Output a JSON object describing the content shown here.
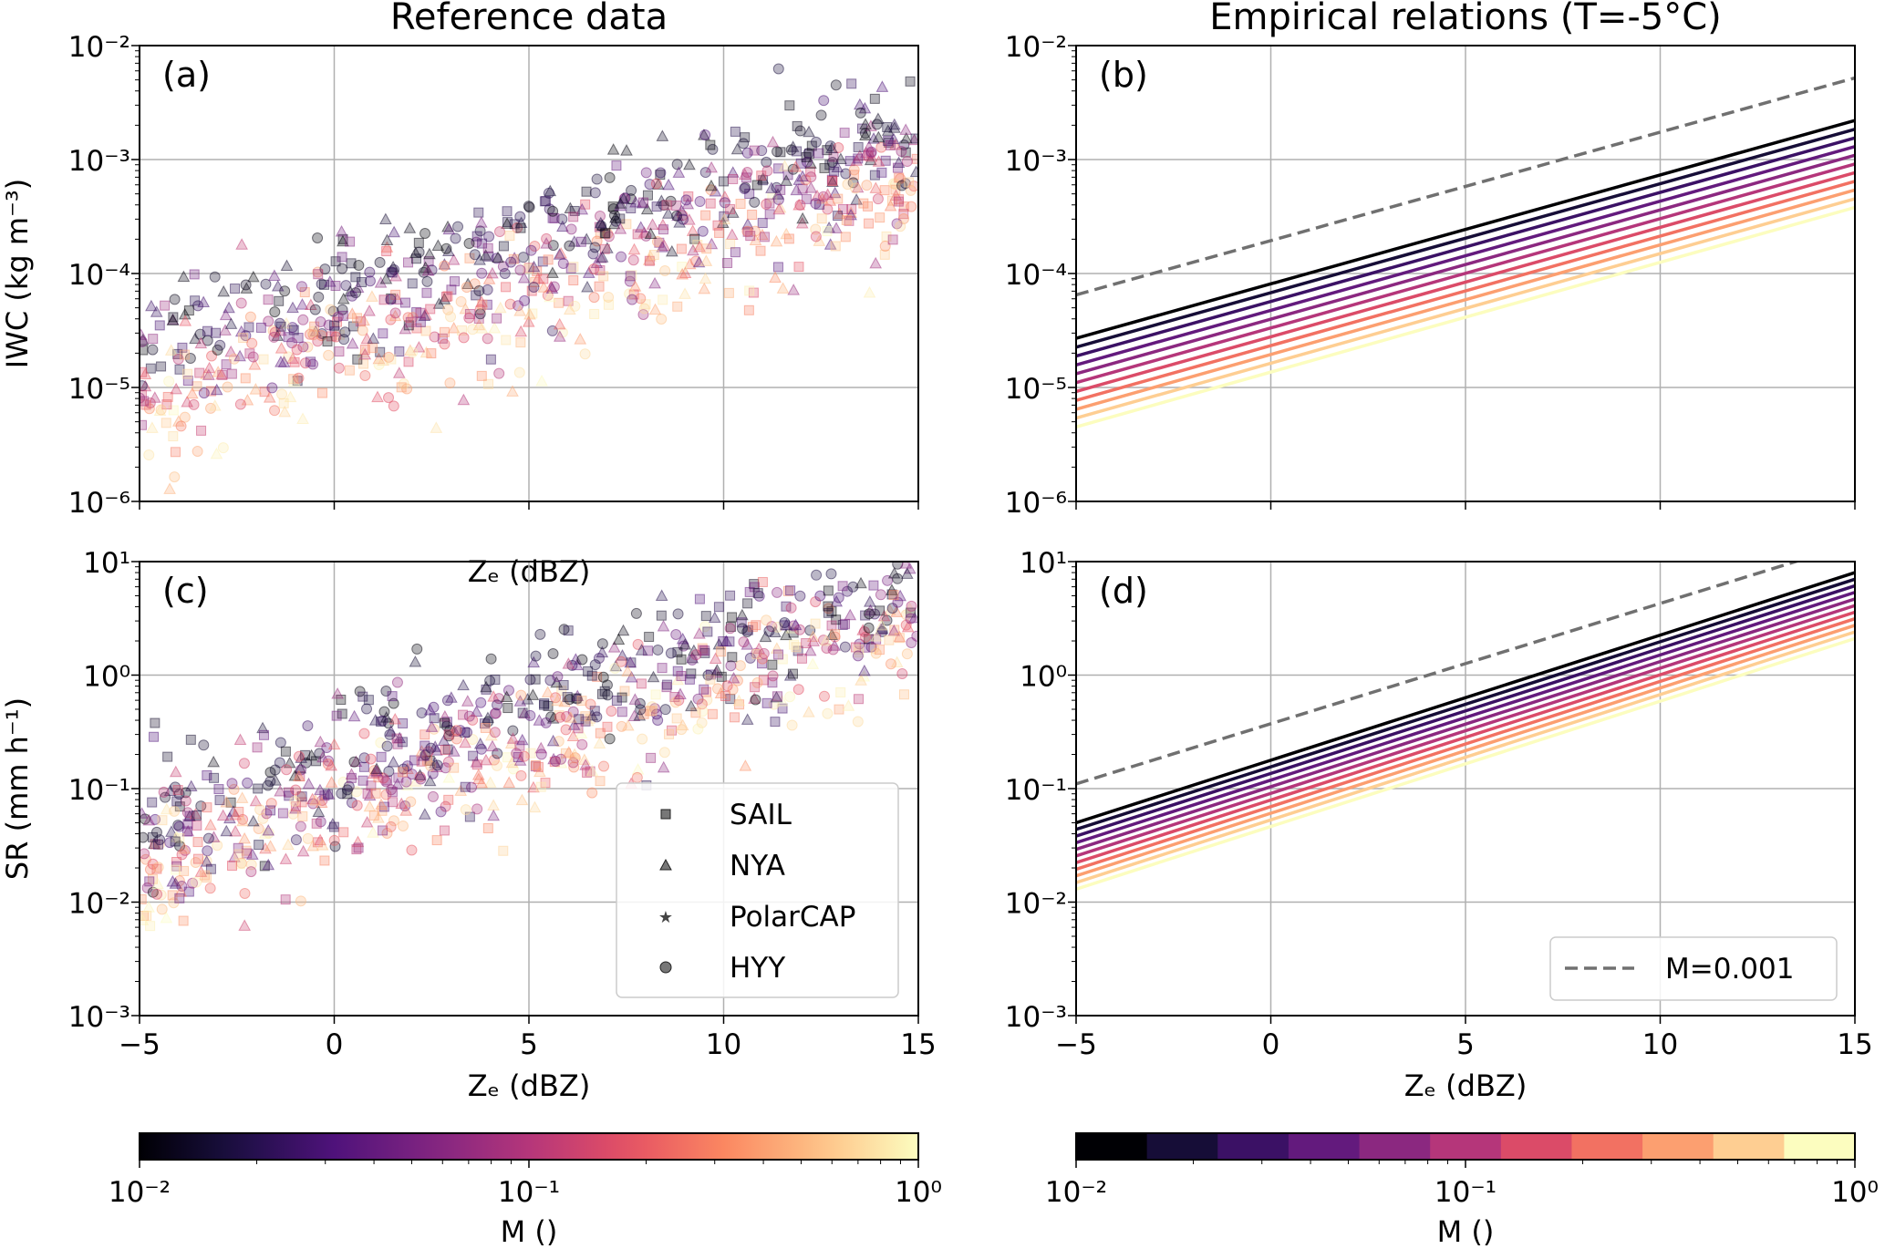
{
  "chart_data": [
    {
      "id": "a",
      "type": "scatter",
      "panel_label": "(a)",
      "title": "Reference data",
      "xlabel": "Zₑ (dBZ)",
      "ylabel": "IWC (kg m⁻³)",
      "xlim": [
        -5,
        15
      ],
      "ylim": [
        1e-06,
        0.01
      ],
      "yscale": "log",
      "grid": true,
      "x_ticks": [
        -5,
        0,
        5,
        10,
        15
      ],
      "y_ticks": [
        {
          "v": 1e-06,
          "label": "10⁻⁶"
        },
        {
          "v": 1e-05,
          "label": "10⁻⁵"
        },
        {
          "v": 0.0001,
          "label": "10⁻⁴"
        },
        {
          "v": 0.001,
          "label": "10⁻³"
        },
        {
          "v": 0.01,
          "label": "10⁻²"
        }
      ],
      "model": {
        "log10_at_xmin_Mmin": -4.57,
        "slope_per_dBZ": 0.0955,
        "M_exponent": -0.39,
        "noise_sd": 0.28
      },
      "color_by": "M"
    },
    {
      "id": "b",
      "type": "line",
      "panel_label": "(b)",
      "title": "Empirical relations (T=-5°C)",
      "xlabel": "",
      "ylabel": "",
      "xlim": [
        -5,
        15
      ],
      "ylim": [
        1e-06,
        0.01
      ],
      "yscale": "log",
      "grid": true,
      "x_ticks": [
        -5,
        0,
        5,
        10,
        15
      ],
      "y_ticks": [
        {
          "v": 1e-06,
          "label": "10⁻⁶"
        },
        {
          "v": 1e-05,
          "label": "10⁻⁵"
        },
        {
          "v": 0.0001,
          "label": "10⁻⁴"
        },
        {
          "v": 0.001,
          "label": "10⁻³"
        },
        {
          "v": 0.01,
          "label": "10⁻²"
        }
      ],
      "series_M": [
        0.01,
        0.0158,
        0.0251,
        0.0398,
        0.0631,
        0.1,
        0.158,
        0.251,
        0.398,
        0.631,
        1.0
      ],
      "series_endpoints": {
        "at_xmin_Mmin": 2.7e-05,
        "at_xmax_Mmin": 0.0022,
        "at_xmin_Mmax": 4.5e-06,
        "at_xmax_Mmax": 0.00038
      },
      "dashed": {
        "label": "M=0.001",
        "at_xmin": 6.5e-05,
        "at_xmax": 0.0052
      }
    },
    {
      "id": "c",
      "type": "scatter",
      "panel_label": "(c)",
      "title": "",
      "xlabel": "Zₑ (dBZ)",
      "ylabel": "SR (mm h⁻¹)",
      "xlim": [
        -5,
        15
      ],
      "ylim": [
        0.001,
        10
      ],
      "yscale": "log",
      "grid": true,
      "x_ticks": [
        -5,
        0,
        5,
        10,
        15
      ],
      "x_tick_labels": [
        "−5",
        "0",
        "5",
        "10",
        "15"
      ],
      "y_ticks": [
        {
          "v": 0.001,
          "label": "10⁻³"
        },
        {
          "v": 0.01,
          "label": "10⁻²"
        },
        {
          "v": 0.1,
          "label": "10⁻¹"
        },
        {
          "v": 1,
          "label": "10⁰"
        },
        {
          "v": 10,
          "label": "10¹"
        }
      ],
      "model": {
        "log10_at_xmin_Mmin": -1.3,
        "slope_per_dBZ": 0.11,
        "M_exponent": -0.29,
        "noise_sd": 0.3
      },
      "legend": {
        "placement": "lower-right",
        "entries": [
          {
            "label": "SAIL",
            "marker": "square"
          },
          {
            "label": "NYA",
            "marker": "triangle"
          },
          {
            "label": "PolarCAP",
            "marker": "star"
          },
          {
            "label": "HYY",
            "marker": "circle"
          }
        ]
      }
    },
    {
      "id": "d",
      "type": "line",
      "panel_label": "(d)",
      "title": "",
      "xlabel": "Zₑ (dBZ)",
      "ylabel": "",
      "xlim": [
        -5,
        15
      ],
      "ylim": [
        0.001,
        10
      ],
      "yscale": "log",
      "grid": true,
      "x_ticks": [
        -5,
        0,
        5,
        10,
        15
      ],
      "x_tick_labels": [
        "−5",
        "0",
        "5",
        "10",
        "15"
      ],
      "y_ticks": [
        {
          "v": 0.001,
          "label": "10⁻³"
        },
        {
          "v": 0.01,
          "label": "10⁻²"
        },
        {
          "v": 0.1,
          "label": "10⁻¹"
        },
        {
          "v": 1,
          "label": "10⁰"
        },
        {
          "v": 10,
          "label": "10¹"
        }
      ],
      "series_M": [
        0.01,
        0.0158,
        0.0251,
        0.0398,
        0.0631,
        0.1,
        0.158,
        0.251,
        0.398,
        0.631,
        1.0
      ],
      "series_endpoints": {
        "at_xmin_Mmin": 0.05,
        "at_xmax_Mmin": 8.0,
        "at_xmin_Mmax": 0.013,
        "at_xmax_Mmax": 2.1
      },
      "dashed": {
        "label": "M=0.001",
        "at_xmin": 0.11,
        "at_xmax": 14.5
      },
      "legend": {
        "placement": "lower-right",
        "entries": [
          {
            "label": "M=0.001",
            "style": "dashed"
          }
        ]
      }
    }
  ],
  "colorbars": [
    {
      "id": "left",
      "type": "continuous",
      "label": "M ()",
      "range": [
        0.01,
        1
      ],
      "ticks": [
        {
          "v": 0.01,
          "label": "10⁻²"
        },
        {
          "v": 0.1,
          "label": "10⁻¹"
        },
        {
          "v": 1,
          "label": "10⁰"
        }
      ]
    },
    {
      "id": "right",
      "type": "discrete",
      "levels": 11,
      "label": "M ()",
      "range": [
        0.01,
        1
      ],
      "ticks": [
        {
          "v": 0.01,
          "label": "10⁻²"
        },
        {
          "v": 0.1,
          "label": "10⁻¹"
        },
        {
          "v": 1,
          "label": "10⁰"
        }
      ]
    }
  ],
  "colors": {
    "grid": "#b0b0b0",
    "dashed": "#707070",
    "magma": [
      "#000004",
      "#1c1044",
      "#4f127b",
      "#812581",
      "#b5367a",
      "#e55064",
      "#fb8761",
      "#fec287",
      "#fcfdbf"
    ]
  }
}
